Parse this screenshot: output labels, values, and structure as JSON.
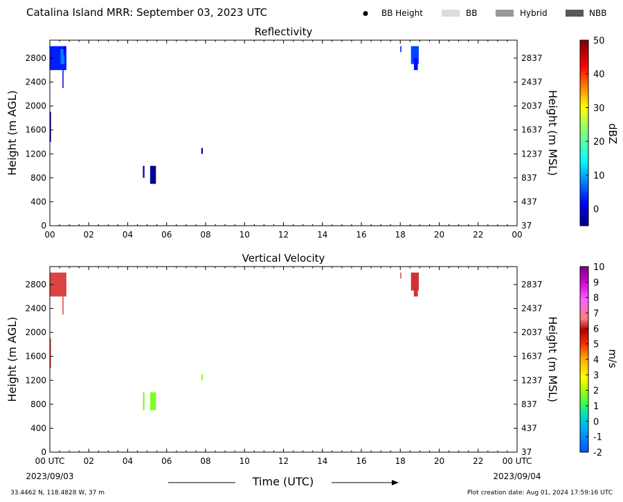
{
  "header": {
    "title": "Catalina Island MRR:  September 03, 2023 UTC",
    "legend": [
      {
        "label": "BB Height",
        "marker": "dot",
        "color": "#000000"
      },
      {
        "label": "BB",
        "marker": "box",
        "color": "#dcdcdc"
      },
      {
        "label": "Hybrid",
        "marker": "box",
        "color": "#989898"
      },
      {
        "label": "NBB",
        "marker": "box",
        "color": "#585858"
      }
    ]
  },
  "footer": {
    "location": "33.4462 N, 118.4828 W, 37 m",
    "creation": "Plot creation date: Aug 01, 2024 17:59:16 UTC",
    "xaxis_label": "Time (UTC)",
    "start_date": "2023/09/03",
    "end_date": "2023/09/04"
  },
  "chart_data": [
    {
      "type": "heatmap",
      "title": "Reflectivity",
      "xlabel": "",
      "ylabel": "Height (m AGL)",
      "ylabel_right": "Height (m MSL)",
      "xlim": [
        0,
        24
      ],
      "ylim": [
        0,
        3100
      ],
      "x_ticks": [
        "00",
        "02",
        "04",
        "06",
        "08",
        "10",
        "12",
        "14",
        "16",
        "18",
        "20",
        "22",
        "00"
      ],
      "y_ticks_left": [
        "0",
        "400",
        "800",
        "1200",
        "1600",
        "2000",
        "2400",
        "2800"
      ],
      "y_ticks_right": [
        "37",
        "437",
        "837",
        "1237",
        "1637",
        "2037",
        "2437",
        "2837"
      ],
      "colorbar": {
        "label": "dBZ",
        "min": -5,
        "max": 50,
        "ticks": [
          0,
          10,
          20,
          30,
          40,
          50
        ]
      },
      "echoes": [
        {
          "t0": 0.0,
          "t1": 0.85,
          "h0": 2600,
          "h1": 3000,
          "value": 3
        },
        {
          "t0": 0.55,
          "t1": 0.75,
          "h0": 2700,
          "h1": 2950,
          "value": 8
        },
        {
          "t0": 0.65,
          "t1": 0.7,
          "h0": 2300,
          "h1": 2600,
          "value": 0
        },
        {
          "t0": 0.7,
          "t1": 0.75,
          "h0": 2850,
          "h1": 3000,
          "value": 2
        },
        {
          "t0": 0.0,
          "t1": 0.06,
          "h0": 1400,
          "h1": 1900,
          "value": -3
        },
        {
          "t0": 0.75,
          "t1": 0.8,
          "h0": 2900,
          "h1": 3000,
          "value": 2
        },
        {
          "t0": 4.78,
          "t1": 4.86,
          "h0": 800,
          "h1": 1000,
          "value": -3
        },
        {
          "t0": 5.15,
          "t1": 5.45,
          "h0": 700,
          "h1": 1000,
          "value": -4
        },
        {
          "t0": 7.78,
          "t1": 7.86,
          "h0": 1200,
          "h1": 1300,
          "value": -2
        },
        {
          "t0": 18.0,
          "t1": 18.05,
          "h0": 2900,
          "h1": 3000,
          "value": 2
        },
        {
          "t0": 18.55,
          "t1": 18.95,
          "h0": 2700,
          "h1": 3000,
          "value": 5
        },
        {
          "t0": 18.7,
          "t1": 18.9,
          "h0": 2600,
          "h1": 2800,
          "value": 2
        }
      ]
    },
    {
      "type": "heatmap",
      "title": "Vertical Velocity",
      "xlabel": "Time (UTC)",
      "ylabel": "Height (m AGL)",
      "ylabel_right": "Height (m MSL)",
      "xlim": [
        0,
        24
      ],
      "ylim": [
        0,
        3100
      ],
      "x_ticks": [
        "00 UTC",
        "02",
        "04",
        "06",
        "08",
        "10",
        "12",
        "14",
        "16",
        "18",
        "20",
        "22",
        "00 UTC"
      ],
      "y_ticks_left": [
        "0",
        "400",
        "800",
        "1200",
        "1600",
        "2000",
        "2400",
        "2800"
      ],
      "y_ticks_right": [
        "37",
        "437",
        "837",
        "1237",
        "1637",
        "2037",
        "2437",
        "2837"
      ],
      "colorbar": {
        "label": "m/s",
        "min": -2,
        "max": 10,
        "ticks": [
          -2,
          -1,
          0,
          1,
          2,
          3,
          4,
          5,
          6,
          7,
          8,
          9,
          10
        ]
      },
      "echoes": [
        {
          "t0": 0.0,
          "t1": 0.85,
          "h0": 2600,
          "h1": 3000,
          "value": 6.3
        },
        {
          "t0": 0.65,
          "t1": 0.7,
          "h0": 2300,
          "h1": 2600,
          "value": 6.3
        },
        {
          "t0": 0.0,
          "t1": 0.06,
          "h0": 1400,
          "h1": 1900,
          "value": 6.3
        },
        {
          "t0": 0.75,
          "t1": 0.8,
          "h0": 2900,
          "h1": 3000,
          "value": 6.3
        },
        {
          "t0": 4.78,
          "t1": 4.86,
          "h0": 700,
          "h1": 1000,
          "value": 1.7
        },
        {
          "t0": 5.15,
          "t1": 5.45,
          "h0": 700,
          "h1": 1000,
          "value": 1.7
        },
        {
          "t0": 7.78,
          "t1": 7.86,
          "h0": 1200,
          "h1": 1300,
          "value": 1.8
        },
        {
          "t0": 18.0,
          "t1": 18.05,
          "h0": 2900,
          "h1": 3000,
          "value": 6.3
        },
        {
          "t0": 18.55,
          "t1": 18.95,
          "h0": 2700,
          "h1": 3000,
          "value": 6.2
        },
        {
          "t0": 18.7,
          "t1": 18.9,
          "h0": 2600,
          "h1": 2800,
          "value": 6.2
        }
      ]
    }
  ]
}
